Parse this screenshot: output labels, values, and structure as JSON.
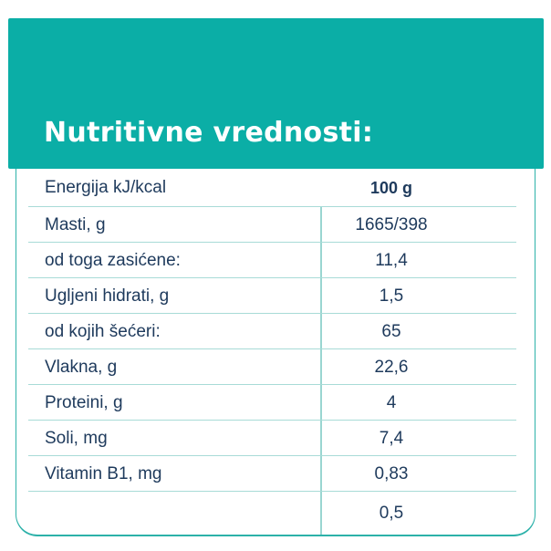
{
  "header": {
    "title": "Nutritivne vrednosti:"
  },
  "table": {
    "rows": [
      {
        "label": "Energija kJ/kcal",
        "value": "100 g"
      },
      {
        "label": "Masti, g",
        "value": "1665/398"
      },
      {
        "label": "od toga zasićene:",
        "value": "11,4"
      },
      {
        "label": "Ugljeni hidrati, g",
        "value": "1,5"
      },
      {
        "label": "od kojih šećeri:",
        "value": "65"
      },
      {
        "label": "Vlakna, g",
        "value": "22,6"
      },
      {
        "label": "Proteini, g",
        "value": "4"
      },
      {
        "label": "Soli, mg",
        "value": "7,4"
      },
      {
        "label": "Vitamin B1, mg",
        "value": "0,83"
      },
      {
        "label": "",
        "value": "0,5"
      }
    ]
  },
  "colors": {
    "accent_teal": "#0BAEA6",
    "border_teal": "#2CB1A9",
    "row_divider": "#A8DBD7",
    "column_separator": "#9AD6D1",
    "text_navy": "#1E3A5C",
    "title_text": "#FFFFFF"
  }
}
